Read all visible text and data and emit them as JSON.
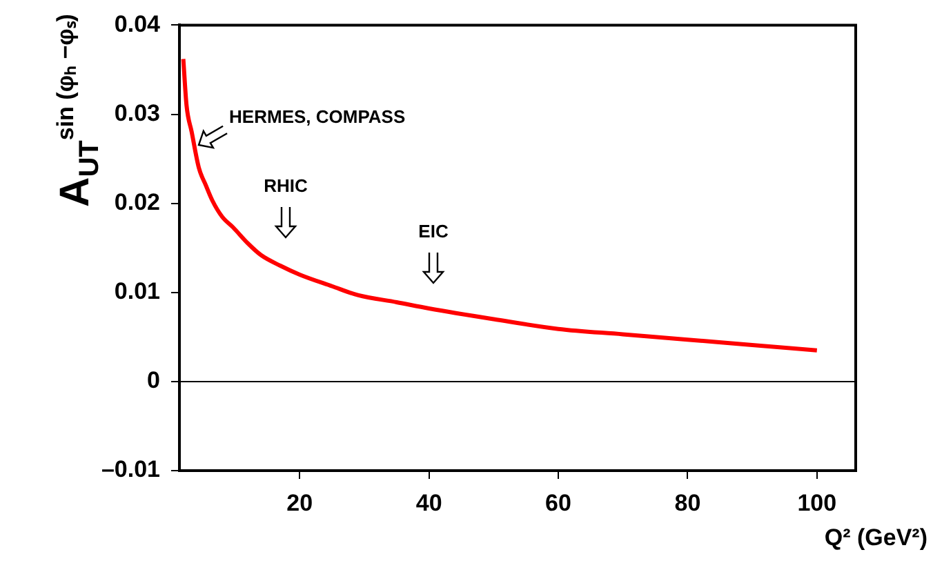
{
  "chart_data": {
    "type": "line",
    "xlabel": "Q² (GeV²)",
    "ylabel": "A$_{UT}$$^{sin (φₕ −φₛ)}$",
    "x": [
      2,
      2.5,
      3.3,
      4.4,
      5.5,
      6.5,
      8,
      9.7,
      12,
      14,
      17,
      20,
      25,
      29,
      35,
      40,
      50,
      60,
      70,
      80,
      90,
      100
    ],
    "series": [
      {
        "color": "#ff0000",
        "values": [
          0.0362,
          0.031,
          0.028,
          0.024,
          0.022,
          0.0203,
          0.0185,
          0.0173,
          0.0155,
          0.0142,
          0.013,
          0.012,
          0.0107,
          0.0097,
          0.0089,
          0.0082,
          0.007,
          0.0059,
          0.0053,
          0.0047,
          0.0041,
          0.0035
        ]
      }
    ],
    "xlim": [
      1.4,
      106
    ],
    "xticks": [
      20,
      40,
      60,
      80,
      100
    ],
    "ylim": [
      -0.01,
      0.04
    ],
    "yticks": [
      {
        "value": -0.01,
        "label": "–0.01"
      },
      0,
      0.01,
      0.02,
      0.03,
      0.04
    ],
    "ref_lines": [
      {
        "axis": "y",
        "value": 0,
        "color": "#000000"
      }
    ],
    "annotations": [
      {
        "text": "HERMES, COMPASS",
        "x": 4.4,
        "y": 0.0265
      },
      "RHIC",
      "EIC"
    ],
    "grid": false,
    "legend": false,
    "marker": "none",
    "line_style": "solid"
  }
}
